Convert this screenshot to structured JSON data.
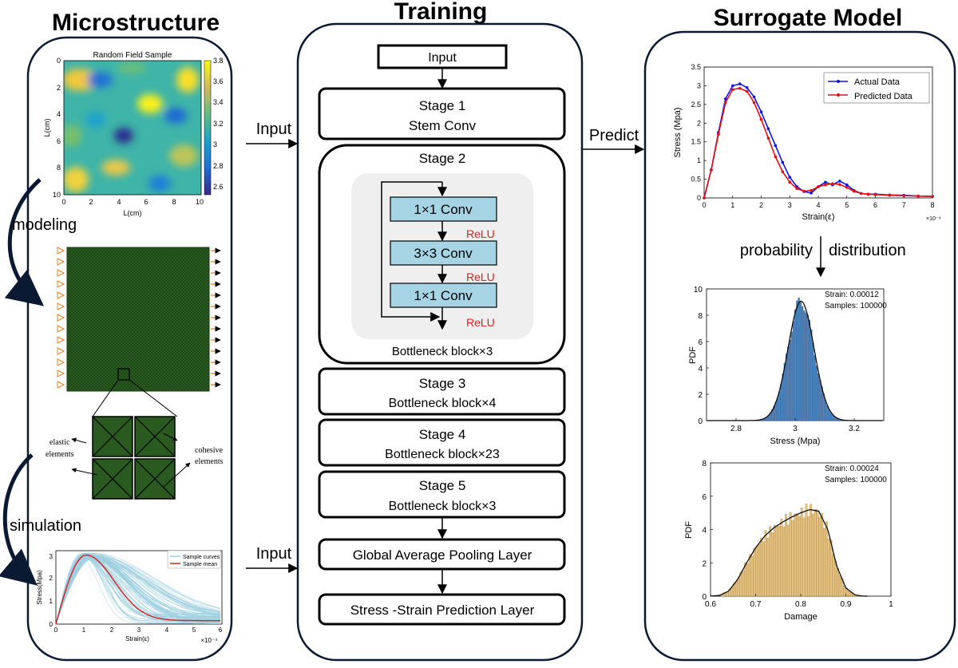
{
  "columns": {
    "micro_title": "Microstructure",
    "training_title": "Training",
    "surrogate_title": "Surrogate Model"
  },
  "micro": {
    "rf_title": "Random Field Sample",
    "rf_xlabel": "L(cm)",
    "rf_ylabel": "L(cm)",
    "rf_ticks_x": [
      "0",
      "2",
      "4",
      "6",
      "8",
      "10"
    ],
    "rf_ticks_y": [
      "0",
      "2",
      "4",
      "6",
      "8",
      "10"
    ],
    "colorbar_ticks": [
      "3.8",
      "3.6",
      "3.4",
      "3.2",
      "3",
      "2.8",
      "2.6"
    ],
    "modeling_label": "modeling",
    "simulation_label": "simulation",
    "elastic_label_1": "elastic",
    "elastic_label_2": "elements",
    "cohesive_label_1": "cohesive",
    "cohesive_label_2": "elements",
    "sim_plot": {
      "ylabel": "Stress(Mpa)",
      "xlabel": "Strain(ε)",
      "exponent": "×10⁻⁴",
      "legend_curves": "Sample curves",
      "legend_mean": "Sample mean",
      "xticks": [
        "0",
        "1",
        "2",
        "3",
        "4",
        "5",
        "6"
      ],
      "yticks": [
        "0",
        "1",
        "2",
        "3"
      ]
    }
  },
  "arrows": {
    "input_top": "Input",
    "input_bottom": "Input",
    "predict": "Predict",
    "probability": "probability",
    "distribution": "distribution"
  },
  "training": {
    "input_box": "Input",
    "stage1_title": "Stage 1",
    "stage1_sub": "Stem Conv",
    "stage2_title": "Stage 2",
    "conv1": "1×1 Conv",
    "conv2": "3×3 Conv",
    "conv3": "1×1 Conv",
    "relu1": "ReLU",
    "relu2": "ReLU",
    "relu3": "ReLU",
    "stage2_sub": "Bottleneck block×3",
    "stage3_title": "Stage 3",
    "stage3_sub": "Bottleneck block×4",
    "stage4_title": "Stage 4",
    "stage4_sub": "Bottleneck block×23",
    "stage5_title": "Stage 5",
    "stage5_sub": "Bottleneck block×3",
    "gap_layer": "Global Average Pooling Layer",
    "pred_layer": "Stress -Strain Prediction Layer"
  },
  "colors": {
    "node_fill": "#a7d4e4",
    "relu": "#e02020",
    "actual": "#1414e6",
    "predicted": "#e01010",
    "hist_blue": "#4a86c2",
    "hist_gold": "#e7c27e",
    "mesh_green": "#2a5a20"
  },
  "chart_data": [
    {
      "type": "line",
      "title": "",
      "xlabel": "Strain(ε)",
      "ylabel": "Stress (Mpa)",
      "x_exponent": "×10⁻⁴",
      "xlim": [
        0,
        8
      ],
      "ylim": [
        0,
        3.5
      ],
      "xticks": [
        "0",
        "1",
        "2",
        "3",
        "4",
        "5",
        "6",
        "7",
        "8"
      ],
      "yticks": [
        "0",
        "0.5",
        "1",
        "1.5",
        "2",
        "2.5",
        "3",
        "3.5"
      ],
      "series": [
        {
          "name": "Actual Data",
          "x": [
            0,
            0.25,
            0.5,
            0.75,
            1,
            1.25,
            1.5,
            1.75,
            2,
            2.25,
            2.5,
            2.75,
            3,
            3.25,
            3.5,
            3.75,
            4,
            4.25,
            4.5,
            4.75,
            5,
            5.25,
            5.5,
            5.75,
            6,
            6.5,
            7,
            7.5,
            8
          ],
          "y": [
            0,
            0.75,
            1.75,
            2.65,
            3.0,
            3.05,
            2.95,
            2.7,
            2.3,
            1.85,
            1.4,
            0.95,
            0.55,
            0.3,
            0.17,
            0.13,
            0.3,
            0.42,
            0.35,
            0.45,
            0.35,
            0.2,
            0.12,
            0.1,
            0.1,
            0.08,
            0.07,
            0.05,
            0.04
          ]
        },
        {
          "name": "Predicted Data",
          "x": [
            0,
            0.25,
            0.5,
            0.75,
            1,
            1.25,
            1.5,
            1.75,
            2,
            2.25,
            2.5,
            2.75,
            3,
            3.25,
            3.5,
            3.75,
            4,
            4.25,
            4.5,
            4.75,
            5,
            5.25,
            5.5,
            5.75,
            6,
            6.5,
            7,
            7.5,
            8
          ],
          "y": [
            0,
            0.75,
            1.7,
            2.55,
            2.9,
            2.93,
            2.85,
            2.55,
            2.1,
            1.6,
            1.1,
            0.7,
            0.42,
            0.25,
            0.18,
            0.2,
            0.3,
            0.35,
            0.38,
            0.36,
            0.28,
            0.18,
            0.12,
            0.1,
            0.09,
            0.07,
            0.06,
            0.05,
            0.04
          ]
        }
      ],
      "legend": "top-right"
    },
    {
      "type": "bar",
      "subtype": "histogram",
      "xlabel": "Stress (Mpa)",
      "ylabel": "PDF",
      "xlim": [
        2.7,
        3.3
      ],
      "ylim": [
        0,
        10
      ],
      "xticks": [
        "2.8",
        "3",
        "3.2"
      ],
      "yticks": [
        "0",
        "2",
        "4",
        "6",
        "8",
        "10"
      ],
      "annotation_1": "Strain: 0.00012",
      "annotation_2": "Samples: 100000",
      "fit": {
        "distribution": "normal",
        "mean": 3.02,
        "std": 0.044
      }
    },
    {
      "type": "bar",
      "subtype": "histogram",
      "xlabel": "Damage",
      "ylabel": "PDF",
      "xlim": [
        0.6,
        1.0
      ],
      "ylim": [
        0,
        8
      ],
      "xticks": [
        "0.6",
        "0.7",
        "0.8",
        "0.9",
        "1"
      ],
      "yticks": [
        "0",
        "2",
        "4",
        "6",
        "8"
      ],
      "annotation_1": "Strain: 0.00024",
      "annotation_2": "Samples: 100000",
      "fit": {
        "x": [
          0.6,
          0.62,
          0.64,
          0.66,
          0.68,
          0.7,
          0.72,
          0.74,
          0.76,
          0.78,
          0.8,
          0.82,
          0.84,
          0.86,
          0.88,
          0.9,
          0.92,
          0.94
        ],
        "y": [
          0,
          0.05,
          0.3,
          1.0,
          2.0,
          2.9,
          3.6,
          4.1,
          4.45,
          4.75,
          5.0,
          5.2,
          5.1,
          4.0,
          1.8,
          0.5,
          0.08,
          0
        ]
      }
    }
  ]
}
